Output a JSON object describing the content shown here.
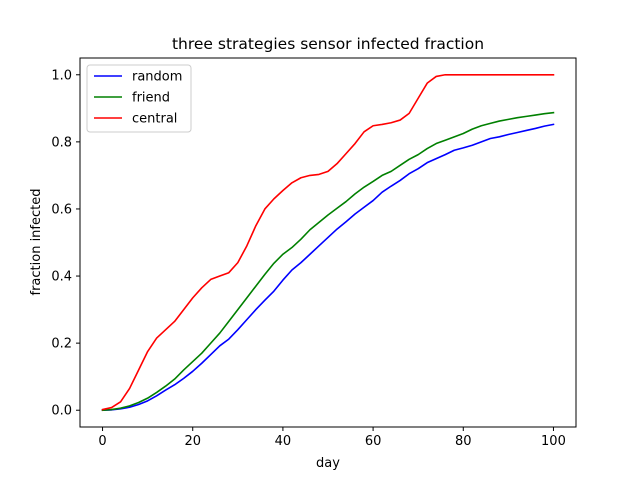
{
  "chart_data": {
    "type": "line",
    "title": "three strategies sensor infected fraction",
    "xlabel": "day",
    "ylabel": "fraction infected",
    "xlim": [
      -5,
      105
    ],
    "ylim": [
      -0.05,
      1.05
    ],
    "xticks": [
      0,
      20,
      40,
      60,
      80,
      100
    ],
    "yticks": [
      0.0,
      0.2,
      0.4,
      0.6,
      0.8,
      1.0
    ],
    "xtick_labels": [
      "0",
      "20",
      "40",
      "60",
      "80",
      "100"
    ],
    "ytick_labels": [
      "0.0",
      "0.2",
      "0.4",
      "0.6",
      "0.8",
      "1.0"
    ],
    "grid": false,
    "legend": "top-left",
    "series": [
      {
        "name": "random",
        "color": "#0000ff",
        "x": [
          0,
          2,
          4,
          6,
          8,
          10,
          12,
          14,
          16,
          18,
          20,
          22,
          24,
          26,
          28,
          30,
          32,
          34,
          36,
          38,
          40,
          42,
          44,
          46,
          48,
          50,
          52,
          54,
          56,
          58,
          60,
          62,
          64,
          66,
          68,
          70,
          72,
          74,
          76,
          78,
          80,
          82,
          84,
          86,
          88,
          90,
          92,
          94,
          96,
          98,
          100
        ],
        "y": [
          0.0,
          0.001,
          0.004,
          0.009,
          0.017,
          0.028,
          0.043,
          0.06,
          0.076,
          0.095,
          0.116,
          0.14,
          0.166,
          0.192,
          0.212,
          0.24,
          0.27,
          0.3,
          0.328,
          0.355,
          0.388,
          0.418,
          0.44,
          0.465,
          0.49,
          0.515,
          0.54,
          0.562,
          0.585,
          0.605,
          0.625,
          0.65,
          0.668,
          0.685,
          0.705,
          0.72,
          0.738,
          0.75,
          0.762,
          0.775,
          0.782,
          0.79,
          0.8,
          0.81,
          0.815,
          0.822,
          0.828,
          0.834,
          0.84,
          0.847,
          0.852
        ]
      },
      {
        "name": "friend",
        "color": "#008000",
        "x": [
          0,
          2,
          4,
          6,
          8,
          10,
          12,
          14,
          16,
          18,
          20,
          22,
          24,
          26,
          28,
          30,
          32,
          34,
          36,
          38,
          40,
          42,
          44,
          46,
          48,
          50,
          52,
          54,
          56,
          58,
          60,
          62,
          64,
          66,
          68,
          70,
          72,
          74,
          76,
          78,
          80,
          82,
          84,
          86,
          88,
          90,
          92,
          94,
          96,
          98,
          100
        ],
        "y": [
          0.0,
          0.002,
          0.006,
          0.013,
          0.023,
          0.036,
          0.053,
          0.072,
          0.093,
          0.12,
          0.145,
          0.17,
          0.2,
          0.23,
          0.265,
          0.3,
          0.335,
          0.37,
          0.405,
          0.438,
          0.465,
          0.485,
          0.51,
          0.538,
          0.56,
          0.582,
          0.602,
          0.622,
          0.645,
          0.665,
          0.682,
          0.7,
          0.712,
          0.73,
          0.748,
          0.762,
          0.78,
          0.795,
          0.805,
          0.815,
          0.825,
          0.838,
          0.848,
          0.855,
          0.862,
          0.867,
          0.872,
          0.876,
          0.88,
          0.884,
          0.887
        ]
      },
      {
        "name": "central",
        "color": "#ff0000",
        "x": [
          0,
          2,
          4,
          6,
          8,
          10,
          12,
          14,
          16,
          18,
          20,
          22,
          24,
          26,
          28,
          30,
          32,
          34,
          36,
          38,
          40,
          42,
          44,
          46,
          48,
          50,
          52,
          54,
          56,
          58,
          60,
          62,
          64,
          66,
          68,
          70,
          72,
          74,
          76,
          78,
          80,
          82,
          84,
          86,
          88,
          90,
          92,
          94,
          96,
          98,
          100
        ],
        "y": [
          0.002,
          0.008,
          0.025,
          0.065,
          0.12,
          0.175,
          0.215,
          0.24,
          0.265,
          0.3,
          0.335,
          0.365,
          0.39,
          0.4,
          0.41,
          0.44,
          0.49,
          0.55,
          0.6,
          0.63,
          0.655,
          0.678,
          0.693,
          0.7,
          0.703,
          0.712,
          0.735,
          0.765,
          0.795,
          0.83,
          0.848,
          0.852,
          0.857,
          0.865,
          0.885,
          0.93,
          0.975,
          0.995,
          1.0,
          1.0,
          1.0,
          1.0,
          1.0,
          1.0,
          1.0,
          1.0,
          1.0,
          1.0,
          1.0,
          1.0,
          1.0
        ]
      }
    ]
  }
}
